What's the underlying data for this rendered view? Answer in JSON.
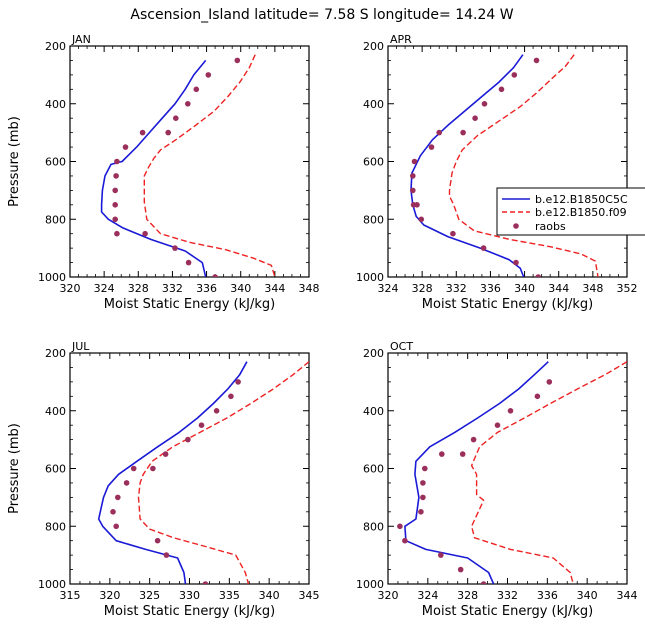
{
  "figure_title": "Ascension_Island  latitude= 7.58 S longitude= 14.24 W",
  "colors": {
    "model_a": "#1a1ad6",
    "model_b": "#ee2222",
    "raobs": "#9b2f5c",
    "axes": "#000000"
  },
  "legend": {
    "placement": "right of APR panel, partly clipped",
    "items": [
      {
        "label": "b.e12.B1850C5C",
        "style": "solid-line",
        "color": "#1a1ad6"
      },
      {
        "label": "b.e12.B1850.f09",
        "style": "dashed-line",
        "color": "#ee2222"
      },
      {
        "label": "raobs",
        "style": "marker",
        "color": "#9b2f5c"
      }
    ]
  },
  "chart_data": [
    {
      "type": "line",
      "panel_label": "JAN",
      "xlabel": "Moist Static Energy (kJ/kg)",
      "ylabel": "Pressure (mb)",
      "xlim": [
        320,
        348
      ],
      "ylim": [
        1000,
        200
      ],
      "y_reversed": true,
      "xticks": [
        320,
        324,
        328,
        332,
        336,
        340,
        344,
        348
      ],
      "xtick_labels": [
        "320",
        "324",
        "328",
        "332",
        "336",
        "340",
        "344",
        "348"
      ],
      "yticks": [
        200,
        400,
        600,
        800,
        1000
      ],
      "ytick_labels": [
        "200",
        "400",
        "600",
        "800",
        "1000"
      ],
      "series": [
        {
          "name": "b.e12.B1850C5C",
          "style": "solid",
          "x": [
            335.9,
            334.5,
            333.5,
            332.3,
            330.8,
            329.3,
            327.8,
            326.1,
            324.8,
            324.1,
            323.8,
            323.7,
            323.7,
            324.5,
            326.2,
            329.5,
            333.5,
            335.5,
            335.9
          ],
          "y": [
            250,
            300,
            350,
            400,
            450,
            500,
            550,
            600,
            610,
            650,
            700,
            750,
            775,
            800,
            830,
            870,
            910,
            950,
            1000
          ]
        },
        {
          "name": "b.e12.B1850.f09",
          "style": "dashed",
          "x": [
            341.7,
            341.0,
            339.9,
            338.5,
            336.9,
            334.7,
            332.4,
            330.6,
            329.8,
            329.2,
            328.7,
            328.7,
            328.7,
            329.0,
            330.6,
            334.0,
            338.2,
            341.5,
            343.6,
            344.0
          ],
          "y": [
            230,
            275,
            325,
            375,
            425,
            475,
            525,
            560,
            590,
            620,
            650,
            700,
            740,
            800,
            850,
            880,
            905,
            935,
            960,
            1000
          ]
        },
        {
          "name": "raobs",
          "style": "markers",
          "x": [
            339.6,
            336.2,
            334.8,
            333.8,
            332.4,
            331.5,
            328.5,
            326.5,
            325.5,
            325.4,
            325.3,
            325.3,
            325.3,
            325.5,
            328.8,
            332.3,
            333.9,
            337.0
          ],
          "y": [
            250,
            300,
            350,
            400,
            450,
            500,
            500,
            550,
            600,
            650,
            700,
            750,
            800,
            850,
            850,
            900,
            950,
            1000
          ]
        }
      ]
    },
    {
      "type": "line",
      "panel_label": "APR",
      "xlabel": "Moist Static Energy (kJ/kg)",
      "ylabel": "",
      "xlim": [
        324,
        352
      ],
      "ylim": [
        1000,
        200
      ],
      "y_reversed": true,
      "xticks": [
        324,
        328,
        332,
        336,
        340,
        344,
        348,
        352
      ],
      "xtick_labels": [
        "324",
        "328",
        "332",
        "336",
        "340",
        "344",
        "348",
        "352"
      ],
      "yticks": [
        200,
        400,
        600,
        800,
        1000
      ],
      "ytick_labels": [
        "200",
        "400",
        "600",
        "800",
        "1000"
      ],
      "series": [
        {
          "name": "b.e12.B1850C5C",
          "style": "solid",
          "x": [
            339.8,
            338.7,
            337.0,
            335.0,
            333.0,
            331.0,
            329.2,
            327.8,
            326.8,
            326.7,
            326.9,
            327.3,
            328.2,
            331.0,
            334.8,
            338.2,
            339.5,
            339.9
          ],
          "y": [
            230,
            275,
            325,
            375,
            425,
            475,
            525,
            580,
            640,
            700,
            750,
            790,
            820,
            860,
            900,
            940,
            970,
            1000
          ]
        },
        {
          "name": "b.e12.B1850.f09",
          "style": "dashed",
          "x": [
            345.8,
            344.8,
            343.3,
            341.5,
            339.5,
            337.0,
            334.5,
            332.7,
            332.0,
            331.5,
            331.2,
            331.2,
            331.7,
            332.3,
            334.1,
            338.3,
            343.0,
            346.6,
            348.3,
            348.6
          ],
          "y": [
            230,
            270,
            310,
            360,
            410,
            460,
            510,
            560,
            600,
            640,
            700,
            720,
            750,
            800,
            840,
            870,
            895,
            920,
            945,
            1000
          ]
        },
        {
          "name": "raobs",
          "style": "markers",
          "x": [
            341.4,
            338.8,
            337.3,
            335.3,
            334.2,
            332.8,
            330.0,
            329.1,
            327.1,
            326.9,
            326.9,
            327.0,
            327.4,
            327.9,
            331.6,
            335.2,
            339.0,
            341.6
          ],
          "y": [
            250,
            300,
            350,
            400,
            450,
            500,
            500,
            550,
            600,
            650,
            700,
            750,
            750,
            800,
            850,
            900,
            950,
            1000
          ]
        }
      ]
    },
    {
      "type": "line",
      "panel_label": "JUL",
      "xlabel": "Moist Static Energy (kJ/kg)",
      "ylabel": "Pressure (mb)",
      "xlim": [
        315,
        345
      ],
      "ylim": [
        1000,
        200
      ],
      "y_reversed": true,
      "xticks": [
        315,
        320,
        325,
        330,
        335,
        340,
        345
      ],
      "xtick_labels": [
        "315",
        "320",
        "325",
        "330",
        "335",
        "340",
        "345"
      ],
      "yticks": [
        200,
        400,
        600,
        800,
        1000
      ],
      "ytick_labels": [
        "200",
        "400",
        "600",
        "800",
        "1000"
      ],
      "series": [
        {
          "name": "b.e12.B1850C5C",
          "style": "solid",
          "x": [
            337.2,
            336.3,
            334.8,
            333.0,
            331.0,
            328.7,
            326.0,
            323.4,
            321.1,
            319.8,
            319.2,
            318.6,
            319.1,
            320.8,
            324.5,
            328.5,
            329.3,
            329.5
          ],
          "y": [
            230,
            275,
            325,
            375,
            425,
            475,
            525,
            575,
            620,
            660,
            700,
            775,
            800,
            850,
            880,
            910,
            960,
            1000
          ]
        },
        {
          "name": "b.e12.B1850.f09",
          "style": "dashed",
          "x": [
            345.0,
            343.0,
            340.5,
            337.7,
            334.7,
            331.3,
            327.9,
            325.3,
            324.2,
            323.8,
            323.6,
            323.8,
            325.0,
            328.0,
            332.0,
            335.8,
            337.0,
            337.4
          ],
          "y": [
            230,
            275,
            325,
            375,
            425,
            475,
            525,
            575,
            620,
            650,
            700,
            775,
            810,
            840,
            870,
            900,
            960,
            1000
          ]
        },
        {
          "name": "raobs",
          "style": "markers",
          "x": [
            336.1,
            335.2,
            333.4,
            331.5,
            329.8,
            327.0,
            325.4,
            323.0,
            322.1,
            321.0,
            320.4,
            320.8,
            326.0,
            327.1,
            332.0
          ],
          "y": [
            300,
            350,
            400,
            450,
            500,
            550,
            600,
            600,
            650,
            700,
            750,
            800,
            850,
            900,
            1000
          ]
        }
      ]
    },
    {
      "type": "line",
      "panel_label": "OCT",
      "xlabel": "Moist Static Energy (kJ/kg)",
      "ylabel": "",
      "xlim": [
        320,
        344
      ],
      "ylim": [
        1000,
        200
      ],
      "y_reversed": true,
      "xticks": [
        320,
        324,
        328,
        332,
        336,
        340,
        344
      ],
      "xtick_labels": [
        "320",
        "324",
        "328",
        "332",
        "336",
        "340",
        "344"
      ],
      "series": [
        {
          "name": "b.e12.B1850C5C",
          "style": "solid",
          "x": [
            336.1,
            334.7,
            333.1,
            331.2,
            329.0,
            326.7,
            324.2,
            322.8,
            322.7,
            323.1,
            322.8,
            321.7,
            321.8,
            323.8,
            328.0,
            330.1,
            330.6
          ],
          "y": [
            230,
            275,
            325,
            375,
            425,
            475,
            525,
            575,
            620,
            700,
            775,
            800,
            850,
            880,
            910,
            960,
            1000
          ]
        },
        {
          "name": "b.e12.B1850.f09",
          "style": "dashed",
          "x": [
            344.0,
            341.8,
            339.0,
            336.3,
            333.7,
            331.0,
            329.2,
            328.4,
            328.9,
            328.9,
            329.6,
            328.4,
            328.7,
            332.3,
            336.6,
            338.3,
            338.6
          ],
          "y": [
            230,
            275,
            325,
            375,
            425,
            475,
            525,
            590,
            620,
            690,
            710,
            800,
            840,
            880,
            910,
            960,
            1000
          ]
        },
        {
          "name": "raobs",
          "style": "markers",
          "x": [
            336.2,
            335.0,
            332.3,
            331.0,
            328.6,
            327.5,
            325.4,
            323.7,
            323.5,
            323.5,
            323.3,
            321.2,
            321.7,
            325.3,
            327.3,
            329.6
          ],
          "y": [
            300,
            350,
            400,
            450,
            500,
            550,
            550,
            600,
            650,
            700,
            750,
            800,
            850,
            900,
            950,
            1000
          ]
        }
      ]
    }
  ]
}
